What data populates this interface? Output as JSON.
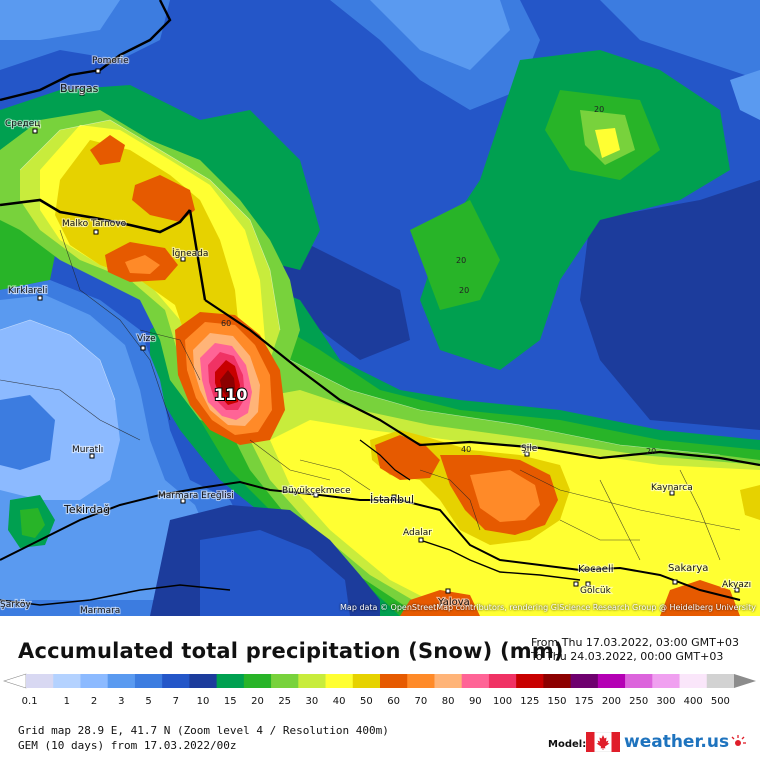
{
  "title": "Accumulated total precipitation (Snow) (mm)",
  "time_from": "From Thu 17.03.2022, 03:00 GMT+03",
  "time_to": "To Thu 24.03.2022, 00:00 GMT+03",
  "grid_info": "Grid map 28.9 E, 41.7 N (Zoom level 4 / Resolution 400m)",
  "model_info": "GEM (10 days) from 17.03.2022/00z",
  "model_label": "Model:",
  "brand": "weather.us",
  "attribution": "Map data © OpenStreetMap contributors, rendering GIScience Research Group @ Heidelberg University",
  "max_value_label": "110",
  "legend": {
    "labels": [
      "0.1",
      "1",
      "2",
      "3",
      "5",
      "7",
      "10",
      "15",
      "20",
      "25",
      "30",
      "40",
      "50",
      "60",
      "70",
      "80",
      "90",
      "100",
      "125",
      "150",
      "175",
      "200",
      "250",
      "300",
      "400",
      "500"
    ],
    "colors": [
      "#d8d8f2",
      "#b4d2ff",
      "#8cbaff",
      "#5a9af0",
      "#3c7ce0",
      "#2456c8",
      "#1c3c9c",
      "#00a050",
      "#28b428",
      "#78d23c",
      "#c8ec3c",
      "#ffff32",
      "#e6d200",
      "#e65a00",
      "#ff8a28",
      "#ffb478",
      "#ff6496",
      "#f03264",
      "#c80000",
      "#8c0000",
      "#6e006e",
      "#b400b4",
      "#dc64dc",
      "#f0a0f0",
      "#fae6fa",
      "#d2d2d2"
    ]
  },
  "places": {
    "pomorie": "Pomorie",
    "burgas": "Burgas",
    "sredets": "Средец",
    "malko_tarnovo": "Malko Tarnovo",
    "igneada": "İğneada",
    "kirklareli": "Kırklareli",
    "vize": "Vize",
    "muratli": "Muratlı",
    "tekirdag": "Tekirdağ",
    "marmara_ereglisi": "Marmara Ereğlisi",
    "buyukcekmece": "Büyükçekmece",
    "istanbul": "İstanbul",
    "adalar": "Adalar",
    "yalova": "Yalova",
    "sile": "Şile",
    "kaynarca": "Kaynarca",
    "kocaeli": "Kocaeli",
    "golcuk": "Gölcük",
    "sakarya": "Sakarya",
    "akyazi": "Akyazı",
    "sarkoy": "Şarköy",
    "marmara": "Marmara"
  },
  "contours": [
    "20",
    "20",
    "20",
    "60",
    "40",
    "20"
  ]
}
